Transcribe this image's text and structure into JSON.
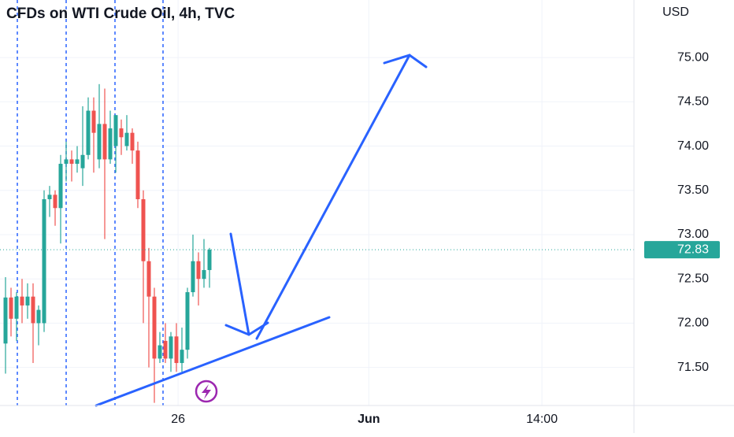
{
  "chart_data": {
    "type": "candlestick",
    "title": "CFDs on WTI Crude Oil, 4h, TVC",
    "currency": "USD",
    "x": [
      0,
      1,
      2,
      3,
      4,
      5,
      6,
      7,
      8,
      9,
      10,
      11,
      12,
      13,
      14,
      15,
      16,
      17,
      18,
      19,
      20,
      21,
      22,
      23,
      24,
      25,
      26,
      27,
      28,
      29,
      30,
      31,
      32,
      33,
      34,
      35,
      36,
      37
    ],
    "open": [
      71.77,
      72.29,
      72.05,
      72.3,
      72.2,
      72.3,
      72.0,
      72.0,
      73.4,
      73.45,
      73.3,
      73.8,
      73.85,
      73.8,
      73.75,
      73.9,
      74.4,
      73.85,
      74.25,
      73.85,
      74.0,
      74.2,
      74.0,
      74.15,
      73.95,
      73.4,
      72.7,
      72.3,
      71.6,
      71.8,
      71.6,
      71.85,
      71.55,
      71.7,
      72.35,
      72.7,
      72.5,
      72.6
    ],
    "high": [
      72.52,
      72.4,
      72.35,
      72.5,
      72.45,
      72.45,
      72.2,
      73.5,
      73.55,
      73.5,
      73.9,
      74.05,
      73.95,
      74.0,
      74.45,
      74.55,
      74.55,
      74.7,
      74.65,
      74.4,
      74.35,
      74.3,
      74.35,
      74.2,
      74.05,
      73.5,
      72.85,
      72.4,
      71.9,
      72.0,
      71.9,
      72.0,
      71.95,
      72.4,
      73.0,
      72.8,
      72.95,
      72.85
    ],
    "low": [
      71.43,
      71.85,
      71.8,
      72.0,
      72.05,
      71.55,
      71.75,
      71.9,
      73.2,
      73.1,
      72.9,
      73.6,
      73.6,
      73.7,
      73.55,
      73.85,
      73.7,
      73.75,
      72.95,
      73.8,
      73.7,
      73.9,
      73.95,
      73.8,
      73.3,
      72.0,
      71.5,
      71.1,
      71.55,
      71.55,
      71.45,
      71.45,
      71.45,
      71.6,
      72.3,
      72.2,
      72.4,
      72.4
    ],
    "close": [
      72.29,
      72.05,
      72.3,
      72.2,
      72.3,
      72.0,
      72.15,
      73.4,
      73.45,
      73.3,
      73.8,
      73.85,
      73.8,
      73.85,
      73.9,
      74.4,
      74.15,
      74.25,
      73.85,
      74.2,
      74.35,
      74.1,
      74.15,
      73.95,
      73.4,
      72.7,
      72.3,
      71.6,
      71.75,
      71.6,
      71.85,
      71.55,
      71.7,
      72.35,
      72.7,
      72.5,
      72.6,
      72.83
    ],
    "up_color": "#26a69a",
    "down_color": "#ef5350",
    "last_price": 72.83,
    "xlim": [
      -1,
      114
    ],
    "xticks": [
      {
        "value": 31.3,
        "label": "26"
      },
      {
        "value": 65.9,
        "label": "Jun"
      },
      {
        "value": 97.3,
        "label": "14:00"
      }
    ],
    "ylim": [
      71.07,
      75.65
    ],
    "yticks": [
      {
        "value": 71.5,
        "label": "71.50"
      },
      {
        "value": 72,
        "label": "72.00"
      },
      {
        "value": 72.5,
        "label": "72.50"
      },
      {
        "value": 73,
        "label": "73.00"
      },
      {
        "value": 73.5,
        "label": "73.50"
      },
      {
        "value": 74,
        "label": "74.00"
      },
      {
        "value": 74.5,
        "label": "74.50"
      },
      {
        "value": 75,
        "label": "75.00"
      }
    ],
    "grid": true
  }
}
